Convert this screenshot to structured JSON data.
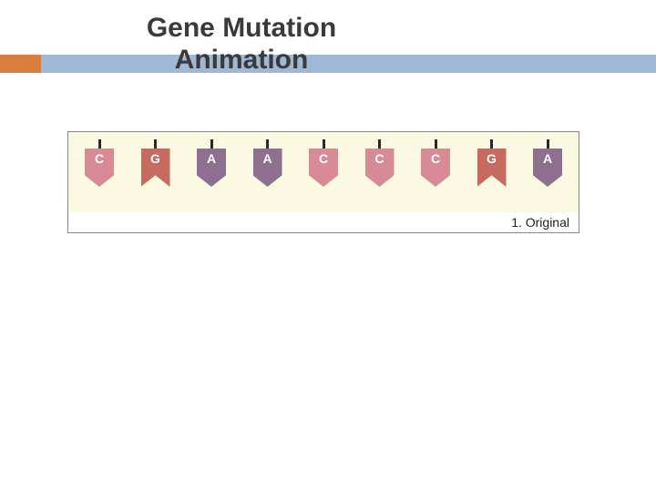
{
  "title": "Gene Mutation\nAnimation",
  "title_color": "#3a3a3a",
  "band": {
    "accent_color": "#d97e3e",
    "main_color": "#9eb8d6"
  },
  "diagram": {
    "panel_bg": "#fbf9e2",
    "caption": "1. Original",
    "caption_bg": "#ffffff",
    "stem_color": "#2a2a2a",
    "nucleotides": [
      {
        "letter": "C",
        "color": "#d88a97",
        "shape": "down"
      },
      {
        "letter": "G",
        "color": "#c76a5f",
        "shape": "up"
      },
      {
        "letter": "A",
        "color": "#8d6f8f",
        "shape": "down"
      },
      {
        "letter": "A",
        "color": "#8d6f8f",
        "shape": "down"
      },
      {
        "letter": "C",
        "color": "#d88a97",
        "shape": "down"
      },
      {
        "letter": "C",
        "color": "#d88a97",
        "shape": "down"
      },
      {
        "letter": "C",
        "color": "#d88a97",
        "shape": "down"
      },
      {
        "letter": "G",
        "color": "#c76a5f",
        "shape": "up"
      },
      {
        "letter": "A",
        "color": "#8d6f8f",
        "shape": "down"
      }
    ]
  }
}
